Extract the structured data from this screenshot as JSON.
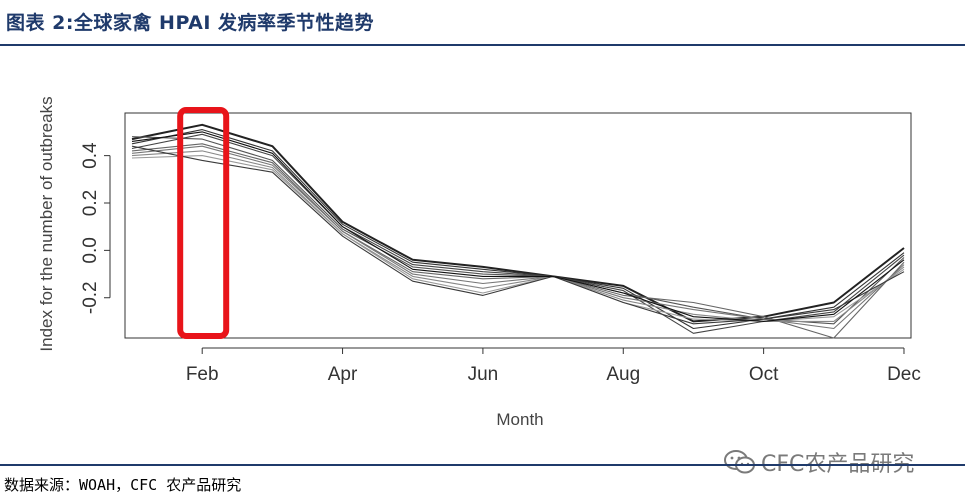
{
  "header": {
    "title": "图表 2:全球家禽 HPAI 发病率季节性趋势"
  },
  "footer": {
    "source": "数据来源：WOAH，CFC 农产品研究",
    "watermark": "CFC农产品研究"
  },
  "colors": {
    "title": "#1f3a6b",
    "highlight": "#e8141a",
    "lines": "#333333"
  },
  "chart_data": {
    "type": "line",
    "xlabel": "Month",
    "ylabel": "Index for the number of outbreaks",
    "x": [
      1,
      2,
      3,
      4,
      5,
      6,
      7,
      8,
      9,
      10,
      11,
      12
    ],
    "x_tick_values": [
      2,
      4,
      6,
      8,
      10,
      12
    ],
    "x_tick_labels": [
      "Feb",
      "Apr",
      "Jun",
      "Aug",
      "Oct",
      "Dec"
    ],
    "y_ticks": [
      -0.2,
      0.0,
      0.2,
      0.4
    ],
    "y_tick_labels": [
      "-0.2",
      "0.0",
      "0.2",
      "0.4"
    ],
    "xlim": [
      0.9,
      12.1
    ],
    "ylim": [
      -0.37,
      0.58
    ],
    "highlight_month": 2,
    "series": [
      {
        "values": [
          0.47,
          0.53,
          0.44,
          0.12,
          -0.04,
          -0.07,
          -0.11,
          -0.15,
          -0.3,
          -0.28,
          -0.22,
          0.01
        ]
      },
      {
        "values": [
          0.45,
          0.51,
          0.42,
          0.11,
          -0.05,
          -0.08,
          -0.11,
          -0.16,
          -0.33,
          -0.29,
          -0.24,
          -0.01
        ]
      },
      {
        "values": [
          0.43,
          0.49,
          0.4,
          0.1,
          -0.06,
          -0.09,
          -0.11,
          -0.17,
          -0.35,
          -0.3,
          -0.26,
          -0.02
        ]
      },
      {
        "values": [
          0.48,
          0.47,
          0.38,
          0.09,
          -0.07,
          -0.1,
          -0.11,
          -0.18,
          -0.24,
          -0.29,
          -0.31,
          -0.03
        ]
      },
      {
        "values": [
          0.42,
          0.45,
          0.37,
          0.08,
          -0.09,
          -0.12,
          -0.11,
          -0.19,
          -0.22,
          -0.28,
          -0.37,
          -0.05
        ]
      },
      {
        "values": [
          0.41,
          0.44,
          0.36,
          0.08,
          -0.1,
          -0.14,
          -0.11,
          -0.2,
          -0.25,
          -0.29,
          -0.33,
          -0.06
        ]
      },
      {
        "values": [
          0.4,
          0.42,
          0.35,
          0.07,
          -0.11,
          -0.16,
          -0.11,
          -0.21,
          -0.27,
          -0.3,
          -0.3,
          -0.07
        ]
      },
      {
        "values": [
          0.39,
          0.4,
          0.34,
          0.07,
          -0.12,
          -0.18,
          -0.11,
          -0.22,
          -0.29,
          -0.3,
          -0.28,
          -0.08
        ]
      },
      {
        "values": [
          0.44,
          0.38,
          0.33,
          0.06,
          -0.13,
          -0.19,
          -0.11,
          -0.22,
          -0.31,
          -0.29,
          -0.25,
          -0.09
        ]
      },
      {
        "values": [
          0.46,
          0.5,
          0.41,
          0.1,
          -0.08,
          -0.11,
          -0.11,
          -0.18,
          -0.28,
          -0.3,
          -0.27,
          -0.04
        ]
      }
    ]
  }
}
